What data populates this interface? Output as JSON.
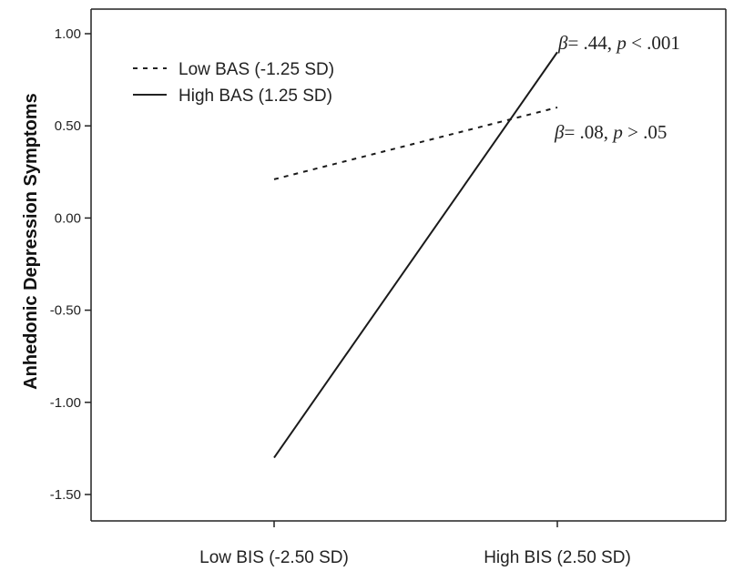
{
  "chart_data": {
    "type": "line",
    "categories": [
      "Low BIS (-2.50 SD)",
      "High BIS (2.50 SD)"
    ],
    "series": [
      {
        "name": "Low BAS (-1.25 SD)",
        "values": [
          0.21,
          0.6
        ],
        "style": "dashed"
      },
      {
        "name": "High BAS (1.25 SD)",
        "values": [
          -1.3,
          0.9
        ],
        "style": "solid"
      }
    ],
    "title": "",
    "xlabel": "",
    "ylabel": "Anhedonic Depression Symptoms",
    "ylim": [
      -1.6,
      1.1
    ],
    "yticks": [
      1.0,
      0.5,
      0.0,
      -0.5,
      -1.0,
      -1.5
    ],
    "ytick_labels": [
      "1.00",
      "0.50",
      "0.00",
      "-0.50",
      "-1.00",
      "-1.50"
    ],
    "legend_position": "top-left",
    "grid": false,
    "annotations": [
      {
        "beta_symbol": "β",
        "text": "= .44, ",
        "p_symbol": "p",
        "rel": " < .001",
        "series": "High BAS (1.25 SD)"
      },
      {
        "beta_symbol": "β",
        "text": "= .08, ",
        "p_symbol": "p",
        "rel": " > .05",
        "series": "Low BAS (-1.25 SD)"
      }
    ]
  }
}
